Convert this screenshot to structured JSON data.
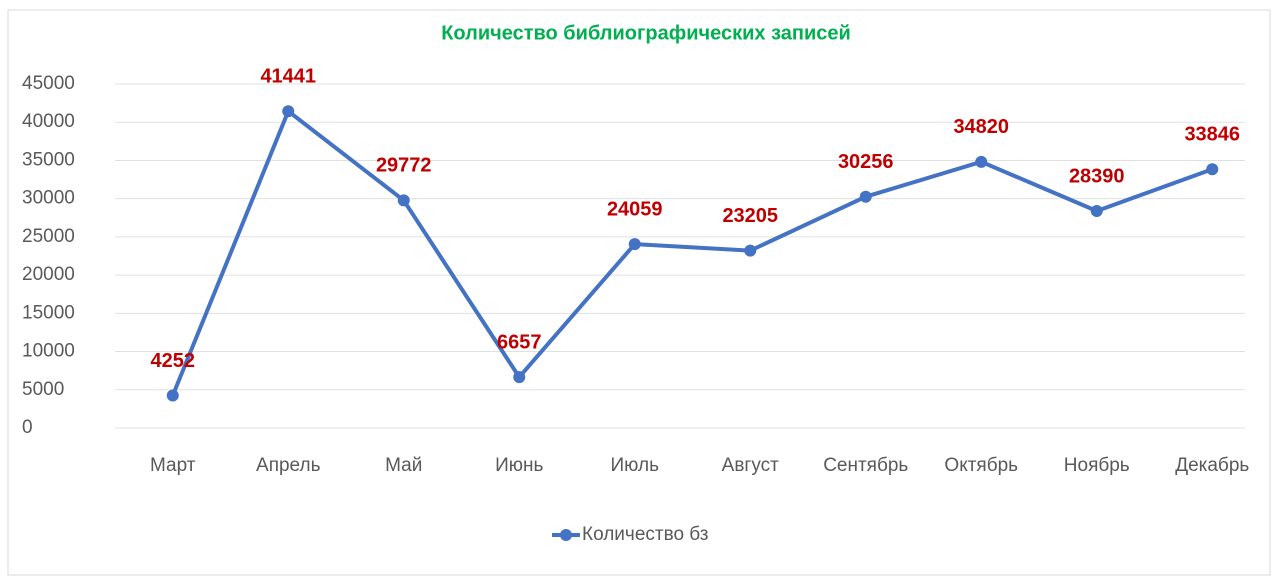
{
  "chart_data": {
    "type": "line",
    "title": "Количество библиографических записей",
    "categories": [
      "Март",
      "Апрель",
      "Май",
      "Июнь",
      "Июль",
      "Август",
      "Сентябрь",
      "Октябрь",
      "Ноябрь",
      "Декабрь"
    ],
    "series": [
      {
        "name": "Количество бз",
        "color": "#4472c4",
        "values": [
          4252,
          41441,
          29772,
          6657,
          24059,
          23205,
          30256,
          34820,
          28390,
          33846
        ]
      }
    ],
    "data_label_color": "#c00000",
    "ylim": [
      0,
      45000
    ],
    "yticks": [
      0,
      5000,
      10000,
      15000,
      20000,
      25000,
      30000,
      35000,
      40000,
      45000
    ],
    "grid": true,
    "legend": "bottom"
  }
}
